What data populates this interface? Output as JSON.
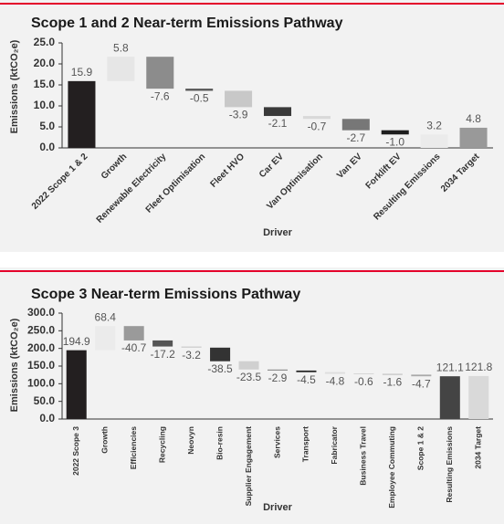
{
  "chart_data": [
    {
      "type": "waterfall",
      "title": "Scope 1 and 2 Near-term Emissions Pathway",
      "x_label": "Driver",
      "y_label": "Emissions (ktCO₂e)",
      "categories": [
        "2022 Scope 1 & 2",
        "Growth",
        "Renewable Electricity",
        "Fleet Optimisation",
        "Fleet HVO",
        "Car EV",
        "Van Optimisation",
        "Van EV",
        "Forklift EV",
        "Resulting Emissions",
        "2034 Target"
      ],
      "values": [
        15.9,
        5.8,
        -7.6,
        -0.5,
        -3.9,
        -2.1,
        -0.7,
        -2.7,
        -1.0,
        3.2,
        4.8
      ],
      "value_labels": [
        "15.9",
        "5.8",
        "-7.6",
        "-0.5",
        "-3.9",
        "-2.1",
        "-0.7",
        "-2.7",
        "-1.0",
        "3.2",
        "4.8"
      ],
      "measure": [
        "absolute",
        "relative",
        "relative",
        "relative",
        "relative",
        "relative",
        "relative",
        "relative",
        "relative",
        "total",
        "absolute"
      ],
      "colors": [
        "#231f20",
        "#e6e6e6",
        "#8c8c8c",
        "#555555",
        "#c8c8c8",
        "#3a3a3a",
        "#d9d9d9",
        "#777777",
        "#1e1e1e",
        "#ebebeb",
        "#999999"
      ],
      "ylim": [
        0,
        25
      ],
      "yticks": [
        {
          "value": 0,
          "label": "0.0"
        },
        {
          "value": 5,
          "label": "5.0"
        },
        {
          "value": 10,
          "label": "10.0"
        },
        {
          "value": 15,
          "label": "15.0"
        },
        {
          "value": 20,
          "label": "20.0"
        },
        {
          "value": 25,
          "label": "25.0"
        }
      ]
    },
    {
      "type": "waterfall",
      "title": "Scope 3 Near-term Emissions Pathway",
      "x_label": "Driver",
      "y_label": "Emissions (ktCO₂e)",
      "categories": [
        "2022 Scope 3",
        "Growth",
        "Efficiencies",
        "Recycling",
        "Neovyn",
        "Bio-resin",
        "Supplier Engagement",
        "Services",
        "Transport",
        "Fabricator",
        "Business Travel",
        "Employee Commuting",
        "Scope 1 & 2",
        "Resulting Emissions",
        "2034 Target"
      ],
      "values": [
        194.9,
        68.4,
        -40.7,
        -17.2,
        -3.2,
        -38.5,
        -23.5,
        -2.9,
        -4.5,
        -4.8,
        -0.6,
        -1.6,
        -4.7,
        121.1,
        121.8
      ],
      "value_labels": [
        "194.9",
        "68.4",
        "-40.7",
        "-17.2",
        "-3.2",
        "-38.5",
        "-23.5",
        "-2.9",
        "-4.5",
        "-4.8",
        "-0.6",
        "-1.6",
        "-4.7",
        "121.1",
        "121.8"
      ],
      "measure": [
        "absolute",
        "relative",
        "relative",
        "relative",
        "relative",
        "relative",
        "relative",
        "relative",
        "relative",
        "relative",
        "relative",
        "relative",
        "relative",
        "total",
        "absolute"
      ],
      "colors": [
        "#231f20",
        "#ebebeb",
        "#9a9a9a",
        "#555555",
        "#cccccc",
        "#333333",
        "#d0d0d0",
        "#888888",
        "#222222",
        "#dddddd",
        "#bbbbbb",
        "#999999",
        "#aaaaaa",
        "#444444",
        "#d9d9d9"
      ],
      "ylim": [
        0,
        300
      ],
      "yticks": [
        {
          "value": 0,
          "label": "0.0"
        },
        {
          "value": 50,
          "label": "50.0"
        },
        {
          "value": 100,
          "label": "100.0"
        },
        {
          "value": 150,
          "label": "150.0"
        },
        {
          "value": 200,
          "label": "200.0"
        },
        {
          "value": 250,
          "label": "250.0"
        },
        {
          "value": 300,
          "label": "300.0"
        }
      ]
    }
  ]
}
